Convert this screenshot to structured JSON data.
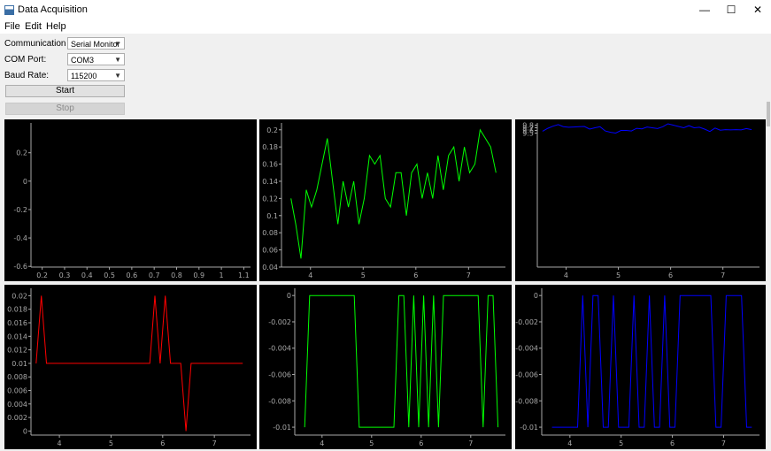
{
  "window": {
    "title": "Data Acquisition",
    "minimize": "—",
    "maximize": "☐",
    "close": "✕"
  },
  "menu": [
    "File",
    "Edit",
    "Help"
  ],
  "controls": {
    "comm_type_label": "Communication Type:",
    "comm_type_value": "Serial Monitor",
    "com_port_label": "COM Port:",
    "com_port_value": "COM3",
    "baud_label": "Baud Rate:",
    "baud_value": "115200",
    "start_label": "Start",
    "stop_label": "Stop"
  },
  "colors": {
    "red": "#ff0000",
    "green": "#00ff00",
    "blue": "#0000ff",
    "plot_bg": "#000000",
    "axis": "#a8a8a8"
  },
  "chart_data": [
    {
      "type": "line",
      "name": "plot-empty",
      "color": "",
      "xlim": [
        0.15,
        1.13
      ],
      "ylim": [
        -0.605,
        0.41
      ],
      "xticks": [
        0.2,
        0.3,
        0.4,
        0.5,
        0.6,
        0.7,
        0.8,
        0.9,
        1,
        1.1
      ],
      "yticks": [
        0.2,
        0,
        -0.2,
        -0.4,
        -0.6
      ],
      "x": [],
      "y": []
    },
    {
      "type": "line",
      "name": "plot-accel-green",
      "color": "#00ff00",
      "xlim": [
        3.45,
        7.7
      ],
      "ylim": [
        0.04,
        0.208
      ],
      "xticks": [
        4,
        5,
        6,
        7
      ],
      "yticks": [
        0.2,
        0.18,
        0.16,
        0.14,
        0.12,
        0.1,
        0.08,
        0.06,
        0.04
      ],
      "x": [
        3.63,
        3.72,
        3.82,
        3.92,
        4.02,
        4.12,
        4.22,
        4.32,
        4.42,
        4.52,
        4.62,
        4.72,
        4.82,
        4.92,
        5.02,
        5.12,
        5.22,
        5.32,
        5.42,
        5.52,
        5.62,
        5.72,
        5.82,
        5.92,
        6.02,
        6.12,
        6.22,
        6.32,
        6.42,
        6.52,
        6.62,
        6.72,
        6.82,
        6.92,
        7.02,
        7.12,
        7.22,
        7.32,
        7.42,
        7.52
      ],
      "y": [
        0.12,
        0.09,
        0.05,
        0.13,
        0.11,
        0.13,
        0.16,
        0.19,
        0.14,
        0.09,
        0.14,
        0.11,
        0.14,
        0.09,
        0.12,
        0.17,
        0.16,
        0.17,
        0.12,
        0.11,
        0.15,
        0.15,
        0.1,
        0.15,
        0.16,
        0.12,
        0.15,
        0.12,
        0.17,
        0.13,
        0.17,
        0.18,
        0.14,
        0.18,
        0.15,
        0.16,
        0.2,
        0.19,
        0.18,
        0.15
      ]
    },
    {
      "type": "line",
      "name": "plot-accel-blue",
      "color": "#0000ff",
      "xlim": [
        3.45,
        7.7
      ],
      "ylim": [
        5,
        4.465,
        9.883
      ],
      "xticks": [
        4,
        5,
        6,
        7
      ],
      "yticks": [
        9.8,
        9.7,
        9.6,
        9.5
      ],
      "x": [
        3.55,
        3.65,
        3.75,
        3.85,
        3.95,
        4.05,
        4.15,
        4.25,
        4.35,
        4.45,
        4.55,
        4.65,
        4.75,
        4.85,
        4.95,
        5.05,
        5.15,
        5.25,
        5.35,
        5.45,
        5.55,
        5.65,
        5.75,
        5.85,
        5.95,
        6.05,
        6.15,
        6.25,
        6.35,
        6.45,
        6.55,
        6.65,
        6.75,
        6.85,
        6.95,
        7.05,
        7.15,
        7.25,
        7.35,
        7.45,
        7.55
      ],
      "y": [
        9.57,
        9.68,
        9.76,
        9.82,
        9.74,
        9.72,
        9.73,
        9.74,
        9.75,
        9.65,
        9.7,
        9.74,
        9.58,
        9.53,
        9.5,
        9.6,
        9.6,
        9.58,
        9.68,
        9.66,
        9.73,
        9.7,
        9.67,
        9.74,
        9.85,
        9.8,
        9.75,
        9.7,
        9.78,
        9.7,
        9.72,
        9.65,
        9.56,
        9.69,
        9.61,
        9.63,
        9.62,
        9.63,
        9.62,
        9.67,
        9.63
      ]
    },
    {
      "type": "line",
      "name": "plot-gyro-red",
      "color": "#ff0000",
      "xlim": [
        3.45,
        7.7
      ],
      "ylim": [
        -0.0006,
        0.0211
      ],
      "xticks": [
        4,
        5,
        6,
        7
      ],
      "yticks": [
        0.02,
        0.018,
        0.016,
        0.014,
        0.012,
        0.01,
        0.008,
        0.006,
        0.004,
        0.002,
        0
      ],
      "x": [
        3.55,
        3.65,
        3.75,
        3.85,
        3.95,
        4.05,
        4.15,
        4.25,
        4.35,
        4.45,
        4.55,
        4.65,
        4.75,
        4.85,
        4.95,
        5.05,
        5.15,
        5.25,
        5.35,
        5.45,
        5.55,
        5.65,
        5.75,
        5.85,
        5.95,
        6.05,
        6.15,
        6.25,
        6.35,
        6.45,
        6.55,
        6.65,
        6.75,
        6.85,
        6.95,
        7.05,
        7.15,
        7.25,
        7.35,
        7.45,
        7.55
      ],
      "y": [
        0.01,
        0.02,
        0.01,
        0.01,
        0.01,
        0.01,
        0.01,
        0.01,
        0.01,
        0.01,
        0.01,
        0.01,
        0.01,
        0.01,
        0.01,
        0.01,
        0.01,
        0.01,
        0.01,
        0.01,
        0.01,
        0.01,
        0.01,
        0.02,
        0.01,
        0.02,
        0.01,
        0.01,
        0.01,
        0.0,
        0.01,
        0.01,
        0.01,
        0.01,
        0.01,
        0.01,
        0.01,
        0.01,
        0.01,
        0.01,
        0.01
      ]
    },
    {
      "type": "line",
      "name": "plot-gyro-green",
      "color": "#00ff00",
      "xlim": [
        3.45,
        7.7
      ],
      "ylim": [
        -0.0106,
        0.00055
      ],
      "xticks": [
        4,
        5,
        6,
        7
      ],
      "yticks": [
        0,
        -0.002,
        -0.004,
        -0.006,
        -0.008,
        -0.01
      ],
      "x": [
        3.65,
        3.75,
        3.85,
        3.95,
        4.05,
        4.15,
        4.25,
        4.35,
        4.45,
        4.55,
        4.65,
        4.75,
        4.85,
        4.95,
        5.05,
        5.15,
        5.25,
        5.35,
        5.45,
        5.55,
        5.65,
        5.75,
        5.85,
        5.95,
        6.05,
        6.15,
        6.25,
        6.35,
        6.45,
        6.55,
        6.65,
        6.75,
        6.85,
        6.95,
        7.05,
        7.15,
        7.25,
        7.35,
        7.45,
        7.55
      ],
      "y": [
        -0.01,
        0,
        0,
        0,
        0,
        0,
        0,
        0,
        0,
        0,
        0,
        -0.01,
        -0.01,
        -0.01,
        -0.01,
        -0.01,
        -0.01,
        -0.01,
        -0.01,
        0,
        0,
        -0.01,
        0,
        -0.01,
        0,
        -0.01,
        0,
        -0.01,
        0,
        0,
        0,
        0,
        0,
        0,
        0,
        0,
        -0.01,
        0,
        0,
        -0.01
      ]
    },
    {
      "type": "line",
      "name": "plot-gyro-blue",
      "color": "#0000ff",
      "xlim": [
        3.45,
        7.7
      ],
      "ylim": [
        -0.0106,
        0.00055
      ],
      "xticks": [
        4,
        5,
        6,
        7
      ],
      "yticks": [
        0,
        -0.002,
        -0.004,
        -0.006,
        -0.008,
        -0.01
      ],
      "x": [
        3.65,
        3.75,
        3.85,
        3.95,
        4.05,
        4.15,
        4.25,
        4.35,
        4.45,
        4.55,
        4.65,
        4.75,
        4.85,
        4.95,
        5.05,
        5.15,
        5.25,
        5.35,
        5.45,
        5.55,
        5.65,
        5.75,
        5.85,
        5.95,
        6.05,
        6.15,
        6.25,
        6.35,
        6.45,
        6.55,
        6.65,
        6.75,
        6.85,
        6.95,
        7.05,
        7.15,
        7.25,
        7.35,
        7.45,
        7.55
      ],
      "y": [
        -0.01,
        -0.01,
        -0.01,
        -0.01,
        -0.01,
        -0.01,
        0,
        -0.01,
        0,
        0,
        -0.01,
        -0.01,
        0,
        -0.01,
        -0.01,
        -0.01,
        0,
        -0.01,
        -0.01,
        0,
        -0.01,
        -0.01,
        0,
        -0.01,
        -0.01,
        0,
        0,
        0,
        0,
        0,
        0,
        0,
        -0.01,
        -0.01,
        0,
        0,
        0,
        0,
        -0.01,
        -0.01
      ]
    }
  ]
}
